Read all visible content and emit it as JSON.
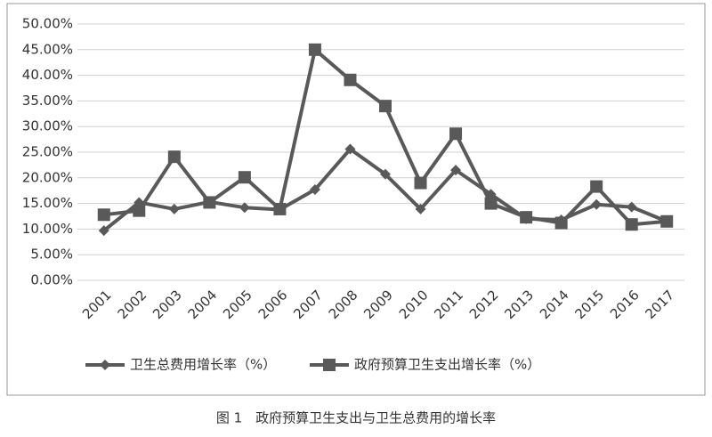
{
  "chart_data": {
    "type": "line",
    "caption": "图 1　政府预算卫生支出与卫生总费用的增长率",
    "categories": [
      "2001",
      "2002",
      "2003",
      "2004",
      "2005",
      "2006",
      "2007",
      "2008",
      "2009",
      "2010",
      "2011",
      "2012",
      "2013",
      "2014",
      "2015",
      "2016",
      "2017"
    ],
    "series": [
      {
        "name": "卫生总费用增长率（%）",
        "color": "#595959",
        "marker": "diamond",
        "values": [
          9.7,
          15.2,
          13.9,
          15.3,
          14.2,
          13.8,
          17.7,
          25.6,
          20.7,
          13.9,
          21.5,
          16.8,
          12.0,
          11.8,
          14.8,
          14.3,
          11.5
        ]
      },
      {
        "name": "政府预算卫生支出增长率（%）",
        "color": "#595959",
        "marker": "square",
        "values": [
          12.8,
          13.6,
          24.1,
          15.2,
          20.1,
          13.9,
          45.0,
          39.1,
          34.0,
          19.0,
          28.6,
          15.0,
          12.3,
          11.2,
          18.3,
          10.9,
          11.5
        ]
      }
    ],
    "ylim": [
      0,
      50
    ],
    "yticks": [
      {
        "value": 0,
        "label": "0.00%"
      },
      {
        "value": 5,
        "label": "5.00%"
      },
      {
        "value": 10,
        "label": "10.00%"
      },
      {
        "value": 15,
        "label": "15.00%"
      },
      {
        "value": 20,
        "label": "20.00%"
      },
      {
        "value": 25,
        "label": "25.00%"
      },
      {
        "value": 30,
        "label": "30.00%"
      },
      {
        "value": 35,
        "label": "35.00%"
      },
      {
        "value": 40,
        "label": "40.00%"
      },
      {
        "value": 45,
        "label": "45.00%"
      },
      {
        "value": 50,
        "label": "50.00%"
      }
    ],
    "grid": true,
    "legend": "bottom"
  }
}
